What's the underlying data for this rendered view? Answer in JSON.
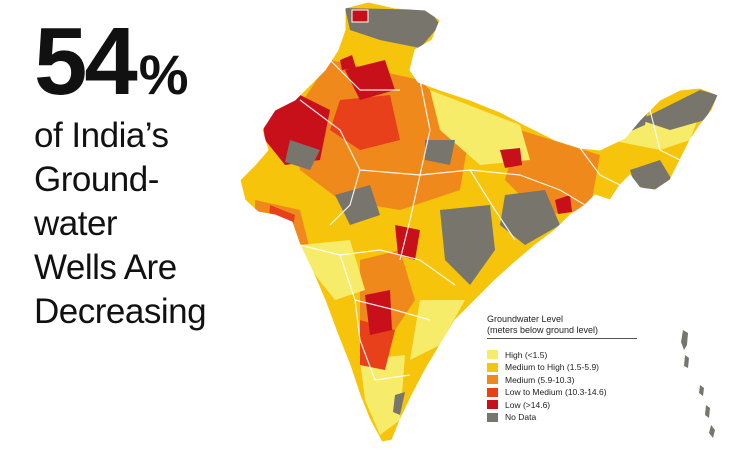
{
  "headline": {
    "number": "54",
    "percent_sign": "%",
    "caption_lines": [
      "of India’s",
      "Ground-",
      "water",
      "Wells Are",
      "Decreasing"
    ]
  },
  "legend": {
    "title": "Groundwater Level",
    "subtitle": "(meters below ground level)",
    "items": [
      {
        "label": "High (<1.5)",
        "color": "#f7ec6a"
      },
      {
        "label": "Medium to High (1.5-5.9)",
        "color": "#f5c40b"
      },
      {
        "label": "Medium (5.9-10.3)",
        "color": "#f0891c"
      },
      {
        "label": "Low to Medium (10.3-14.6)",
        "color": "#e8401b"
      },
      {
        "label": "Low (>14.6)",
        "color": "#c8101a"
      },
      {
        "label": "No Data",
        "color": "#77756c"
      }
    ]
  },
  "colors": {
    "high": "#f7ec6a",
    "medium_high": "#f5c40b",
    "medium": "#f0891c",
    "low_medium": "#e8401b",
    "low": "#c8101a",
    "no_data": "#77756c",
    "boundary": "#ffffff"
  }
}
